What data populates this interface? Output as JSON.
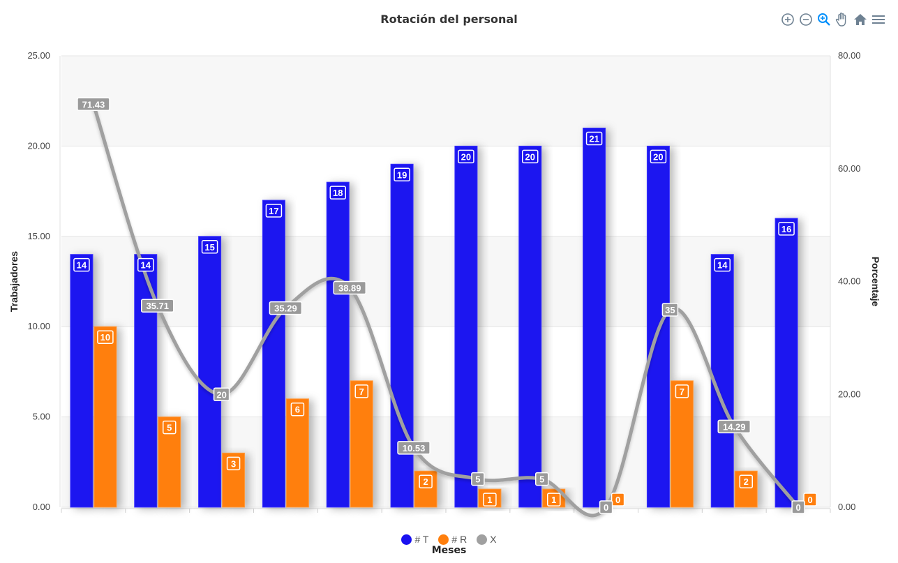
{
  "chart_data": {
    "type": "bar",
    "title": "Rotación del personal",
    "xlabel": "Meses",
    "ylabel_left": "Trabajadores",
    "ylabel_right": "Porcentaje",
    "ylim_left": [
      0,
      25
    ],
    "ylim_right": [
      0,
      80
    ],
    "yticks_left": [
      "0.00",
      "5.00",
      "10.00",
      "15.00",
      "20.00",
      "25.00"
    ],
    "yticks_right": [
      "0.00",
      "20.00",
      "40.00",
      "60.00",
      "80.00"
    ],
    "categories": [
      "",
      "",
      "",
      "",
      "",
      "",
      "",
      "",
      "",
      "",
      "",
      ""
    ],
    "series": [
      {
        "name": "# T",
        "type": "bar",
        "axis": "left",
        "color": "#1a12f0",
        "values": [
          14,
          14,
          15,
          17,
          18,
          19,
          20,
          20,
          21,
          20,
          14,
          16
        ],
        "labels": [
          "14",
          "14",
          "15",
          "17",
          "18",
          "19",
          "20",
          "20",
          "21",
          "20",
          "14",
          "16"
        ]
      },
      {
        "name": "# R",
        "type": "bar",
        "axis": "left",
        "color": "#ff7f0e",
        "values": [
          10,
          5,
          3,
          6,
          7,
          2,
          1,
          1,
          0,
          7,
          2,
          0
        ],
        "labels": [
          "10",
          "5",
          "3",
          "6",
          "7",
          "2",
          "1",
          "1",
          "0",
          "7",
          "2",
          "0"
        ]
      },
      {
        "name": "X",
        "type": "line",
        "axis": "right",
        "color": "#a0a0a0",
        "values": [
          71.43,
          35.71,
          20,
          35.29,
          38.89,
          10.53,
          5,
          5,
          0,
          35,
          14.29,
          0
        ],
        "labels": [
          "71.43",
          "35.71",
          "20",
          "35.29",
          "38.89",
          "10.53",
          "5",
          "5",
          "0",
          "35",
          "14.29",
          "0"
        ]
      }
    ],
    "legend_position": "bottom-center",
    "grid": true
  },
  "toolbar": {
    "icons": [
      "zoom-in-icon",
      "zoom-out-icon",
      "selection-zoom-icon",
      "pan-hand-icon",
      "reset-home-icon",
      "menu-icon"
    ]
  }
}
